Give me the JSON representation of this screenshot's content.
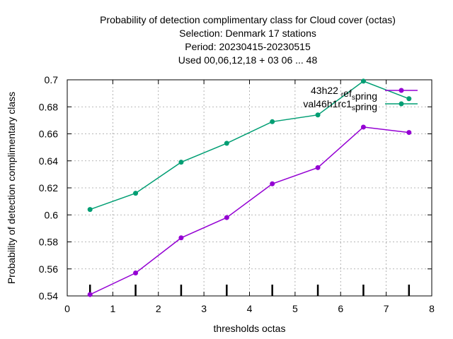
{
  "chart_data": {
    "type": "line",
    "title_lines": [
      "Probability of detection complimentary class  for Cloud cover (octas)",
      "Selection: Denmark     17 stations",
      "Period: 20230415-20230515",
      "Used  00,06,12,18  + 03 06 ... 48"
    ],
    "xlabel": "thresholds octas",
    "ylabel": "Probability of detection complimentary class",
    "xlim": [
      0,
      8
    ],
    "ylim": [
      0.54,
      0.7
    ],
    "xticks": [
      0,
      1,
      2,
      3,
      4,
      5,
      6,
      7,
      8
    ],
    "yticks": [
      0.54,
      0.56,
      0.58,
      0.6,
      0.62,
      0.64,
      0.66,
      0.68,
      0.7
    ],
    "xtick_labels": [
      "0",
      "1",
      "2",
      "3",
      "4",
      "5",
      "6",
      "7",
      "8"
    ],
    "ytick_labels": [
      "0.54",
      "0.56",
      "0.58",
      "0.6",
      "0.62",
      "0.64",
      "0.66",
      "0.68",
      "0.7"
    ],
    "grid": true,
    "legend_position": "top-right",
    "bottom_markers_x": [
      0.5,
      1.5,
      2.5,
      3.5,
      4.5,
      5.5,
      6.5,
      7.5
    ],
    "series": [
      {
        "name": "43h22_ref_spring",
        "legend_label": {
          "base": "43h22 ",
          "sub1": "r",
          "mid": "ef",
          "sub2": "s",
          "tail": "pring"
        },
        "color": "#9400d3",
        "x": [
          0.5,
          1.5,
          2.5,
          3.5,
          4.5,
          5.5,
          6.5,
          7.5
        ],
        "values": [
          0.541,
          0.557,
          0.583,
          0.598,
          0.623,
          0.635,
          0.665,
          0.661
        ]
      },
      {
        "name": "val46h1rc1_spring",
        "legend_label": {
          "base": "val46h1rc1",
          "sub1": "",
          "mid": "",
          "sub2": "s",
          "tail": "pring"
        },
        "color": "#009e73",
        "x": [
          0.5,
          1.5,
          2.5,
          3.5,
          4.5,
          5.5,
          6.5,
          7.5
        ],
        "values": [
          0.604,
          0.616,
          0.639,
          0.653,
          0.669,
          0.674,
          0.699,
          0.686
        ]
      }
    ]
  }
}
